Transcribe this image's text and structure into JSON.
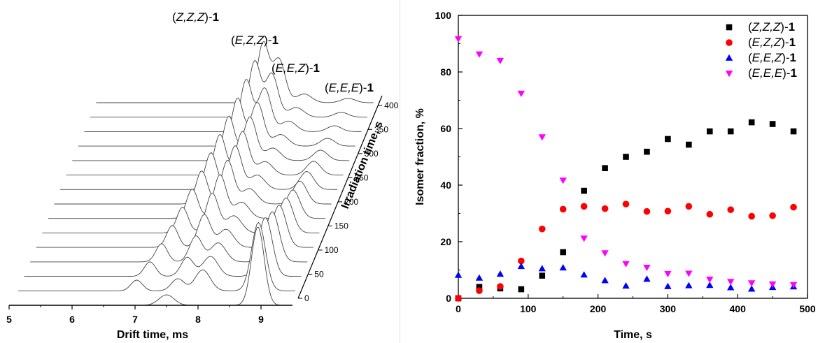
{
  "chart_data": [
    {
      "type": "waterfall",
      "xlabel": "Drift time, ms",
      "xlim": [
        5,
        9.5
      ],
      "xticks": [
        5,
        6,
        7,
        8,
        9
      ],
      "zlabel": "Irradiation time, s",
      "zticks": [
        0,
        50,
        100,
        150,
        200,
        250,
        300,
        350,
        400
      ],
      "z": [
        0,
        30,
        60,
        90,
        120,
        150,
        180,
        210,
        240,
        270,
        300,
        330,
        360,
        390,
        420
      ],
      "peaks": [
        {
          "name": "(Z,Z,Z)-1",
          "drift_ms": 7.7
        },
        {
          "name": "(E,Z,Z)-1",
          "drift_ms": 7.95
        },
        {
          "name": "(E,E,Z)-1",
          "drift_ms": 8.35
        },
        {
          "name": "(E,E,E)-1",
          "drift_ms": 8.95
        }
      ],
      "peak_labels": [
        {
          "name": "(Z,Z,Z)-1",
          "italic": "Z,Z,Z"
        },
        {
          "name": "(E,Z,Z)-1",
          "italic": "E,Z,Z"
        },
        {
          "name": "(E,E,Z)-1",
          "italic": "E,E,Z"
        },
        {
          "name": "(E,E,E)-1",
          "italic": "E,E,E"
        }
      ]
    },
    {
      "type": "scatter",
      "xlabel": "Time, s",
      "ylabel": "Isomer fraction, %",
      "xlim": [
        0,
        500
      ],
      "ylim": [
        0,
        100
      ],
      "xticks": [
        0,
        100,
        200,
        300,
        400,
        500
      ],
      "yticks": [
        0,
        20,
        40,
        60,
        80,
        100
      ],
      "legend_position": "top-right",
      "x": [
        0,
        30,
        60,
        90,
        120,
        150,
        180,
        210,
        240,
        270,
        300,
        330,
        360,
        390,
        420,
        450,
        480
      ],
      "series": [
        {
          "name": "(Z,Z,Z)-1",
          "italic": "Z,Z,Z",
          "marker": "square",
          "color": "#000000",
          "values": [
            0,
            4,
            3.5,
            3.2,
            8,
            16.3,
            38,
            46,
            50,
            51.8,
            56.3,
            54.3,
            59,
            59,
            62.2,
            61.6,
            59
          ]
        },
        {
          "name": "(E,Z,Z)-1",
          "italic": "E,Z,Z",
          "marker": "circle",
          "color": "#ff0000",
          "values": [
            0,
            2.7,
            4.2,
            13.2,
            24.5,
            31.5,
            32.5,
            31.7,
            33.3,
            30.7,
            30.8,
            32.5,
            29.7,
            31.3,
            29,
            29.2,
            32.2
          ]
        },
        {
          "name": "(E,E,Z)-1",
          "italic": "E,E,Z",
          "marker": "triangle-up",
          "color": "#0000ff",
          "values": [
            8.2,
            7.2,
            8.6,
            11.3,
            10.5,
            10.8,
            8.3,
            6.3,
            4.4,
            6.8,
            4.2,
            4.5,
            4.6,
            3.8,
            3.3,
            3.9,
            4.1
          ]
        },
        {
          "name": "(E,E,E)-1",
          "italic": "E,E,E",
          "marker": "triangle-down",
          "color": "#ff00ff",
          "values": [
            91.7,
            86.3,
            84,
            72.4,
            57,
            41.7,
            21.2,
            16,
            12.2,
            10.9,
            8.7,
            8.8,
            6.7,
            5.9,
            5.4,
            5,
            4.8
          ]
        }
      ]
    }
  ]
}
